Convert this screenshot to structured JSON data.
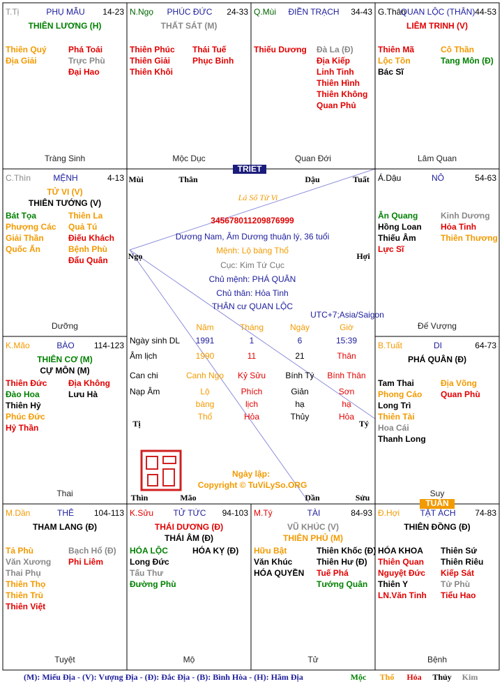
{
  "palaces": [
    {
      "branch": "T.Tị",
      "branch_color": "#888888",
      "name": "PHỤ MẪU",
      "ages": "14-23",
      "main": [
        {
          "text": "THIÊN LƯƠNG (H)",
          "color": "#008000"
        }
      ],
      "left": [
        {
          "text": "Thiên Quý",
          "color": "#f29a00"
        },
        {
          "text": "Địa Giải",
          "color": "#f29a00"
        }
      ],
      "right": [
        {
          "text": "Phá Toái",
          "color": "#e00000"
        },
        {
          "text": "Trực Phù",
          "color": "#888888"
        },
        {
          "text": "Đại Hao",
          "color": "#e00000"
        }
      ],
      "stage": "Tràng Sinh"
    },
    {
      "branch": "N.Ngọ",
      "branch_color": "#006400",
      "name": "PHÚC ĐỨC",
      "ages": "24-33",
      "main": [
        {
          "text": "THẤT SÁT (M)",
          "color": "#888888"
        }
      ],
      "left": [
        {
          "text": "Thiên Phúc",
          "color": "#e00000"
        },
        {
          "text": "Thiên Giải",
          "color": "#e00000"
        },
        {
          "text": "Thiên Khôi",
          "color": "#e00000"
        }
      ],
      "right": [
        {
          "text": "Thái Tuế",
          "color": "#e00000"
        },
        {
          "text": "Phục Binh",
          "color": "#e00000"
        }
      ],
      "stage": "Mộc Dục"
    },
    {
      "branch": "Q.Mùi",
      "branch_color": "#006400",
      "name": "ĐIỀN TRẠCH",
      "ages": "34-43",
      "main": [],
      "left": [
        {
          "text": "Thiếu Dương",
          "color": "#e00000"
        }
      ],
      "right": [
        {
          "text": "Đà La (Đ)",
          "color": "#888888"
        },
        {
          "text": "Địa Kiếp",
          "color": "#e00000"
        },
        {
          "text": "Linh Tinh",
          "color": "#e00000"
        },
        {
          "text": "Thiên Hình",
          "color": "#e00000"
        },
        {
          "text": "Thiên Không",
          "color": "#e00000"
        },
        {
          "text": "Quan Phủ",
          "color": "#e00000"
        }
      ],
      "stage": "Quan Đới"
    },
    {
      "branch": "G.Thân",
      "branch_color": "#000000",
      "name": "QUAN LỘC (THÂN)",
      "ages": "44-53",
      "main": [
        {
          "text": "LIÊM TRINH (V)",
          "color": "#e00000"
        }
      ],
      "left": [
        {
          "text": "Thiên Mã",
          "color": "#e00000"
        },
        {
          "text": "Lộc Tồn",
          "color": "#f29a00"
        },
        {
          "text": "Bác Sĩ",
          "color": "#000000"
        }
      ],
      "right": [
        {
          "text": "Cô Thần",
          "color": "#f29a00"
        },
        {
          "text": "Tang Môn (Đ)",
          "color": "#008000"
        }
      ],
      "stage": "Lâm Quan"
    },
    {
      "branch": "C.Thìn",
      "branch_color": "#888888",
      "name": "MỆNH",
      "ages": "4-13",
      "main": [
        {
          "text": "TỬ VI (V)",
          "color": "#f29a00"
        },
        {
          "text": "THIÊN TƯỚNG (V)",
          "color": "#000000"
        }
      ],
      "left": [
        {
          "text": "Bát Tọa",
          "color": "#008000"
        },
        {
          "text": "Phượng Các",
          "color": "#f29a00"
        },
        {
          "text": "Giải Thần",
          "color": "#f29a00"
        },
        {
          "text": "Quốc Ấn",
          "color": "#f29a00"
        }
      ],
      "right": [
        {
          "text": "Thiên La",
          "color": "#f29a00"
        },
        {
          "text": "Quả Tú",
          "color": "#f29a00"
        },
        {
          "text": "Điếu Khách",
          "color": "#e00000"
        },
        {
          "text": "Bệnh Phù",
          "color": "#f29a00"
        },
        {
          "text": "Đẩu Quân",
          "color": "#e00000"
        }
      ],
      "stage": "Dưỡng"
    },
    {
      "branch": "Á.Dậu",
      "branch_color": "#000000",
      "name": "NÔ",
      "ages": "54-63",
      "main": [],
      "left": [
        {
          "text": "Ân Quang",
          "color": "#008000"
        },
        {
          "text": "Hồng Loan",
          "color": "#000000"
        },
        {
          "text": "Thiếu Âm",
          "color": "#000000"
        },
        {
          "text": "Lực Sĩ",
          "color": "#e00000"
        }
      ],
      "right": [
        {
          "text": "Kinh Dương",
          "color": "#888888"
        },
        {
          "text": "Hỏa Tinh",
          "color": "#e00000"
        },
        {
          "text": "Thiên Thương",
          "color": "#f29a00"
        }
      ],
      "stage": "Đế Vượng"
    },
    {
      "branch": "K.Mão",
      "branch_color": "#f29a00",
      "name": "BÀO",
      "ages": "114-123",
      "main": [
        {
          "text": "THIÊN CƠ (M)",
          "color": "#008000"
        },
        {
          "text": "CỰ MÔN (M)",
          "color": "#000000"
        }
      ],
      "left": [
        {
          "text": "Thiên Đức",
          "color": "#e00000"
        },
        {
          "text": "Đào Hoa",
          "color": "#008000"
        },
        {
          "text": "Thiên Hỷ",
          "color": "#000000"
        },
        {
          "text": "Phúc Đức",
          "color": "#f29a00"
        },
        {
          "text": "Hỷ Thần",
          "color": "#e00000"
        }
      ],
      "right": [
        {
          "text": "Địa Không",
          "color": "#e00000"
        },
        {
          "text": "Lưu Hà",
          "color": "#000000"
        }
      ],
      "stage": "Thai"
    },
    {
      "branch": "B.Tuất",
      "branch_color": "#f29a00",
      "name": "DI",
      "ages": "64-73",
      "main": [
        {
          "text": "PHÁ QUÂN (Đ)",
          "color": "#000000"
        }
      ],
      "left": [
        {
          "text": "Tam Thai",
          "color": "#000000"
        },
        {
          "text": "Phong Cáo",
          "color": "#f29a00"
        },
        {
          "text": "Long Trì",
          "color": "#000000"
        },
        {
          "text": "Thiên Tài",
          "color": "#f29a00"
        },
        {
          "text": "Hoa Cái",
          "color": "#888888"
        },
        {
          "text": "Thanh Long",
          "color": "#000000"
        }
      ],
      "right": [
        {
          "text": "Địa Võng",
          "color": "#f29a00"
        },
        {
          "text": "Quan Phù",
          "color": "#e00000"
        }
      ],
      "stage": "Suy"
    },
    {
      "branch": "M.Dần",
      "branch_color": "#f29a00",
      "name": "THÊ",
      "ages": "104-113",
      "main": [
        {
          "text": "THAM LANG (Đ)",
          "color": "#000000"
        }
      ],
      "left": [
        {
          "text": "Tả Phù",
          "color": "#f29a00"
        },
        {
          "text": "Văn Xương",
          "color": "#888888"
        },
        {
          "text": "Thai Phụ",
          "color": "#888888"
        },
        {
          "text": "Thiên Thọ",
          "color": "#f29a00"
        },
        {
          "text": "Thiên Trù",
          "color": "#f29a00"
        },
        {
          "text": "Thiên Việt",
          "color": "#e00000"
        }
      ],
      "right": [
        {
          "text": "Bạch Hổ (Đ)",
          "color": "#888888"
        },
        {
          "text": "Phi Liêm",
          "color": "#e00000"
        }
      ],
      "stage": "Tuyệt"
    },
    {
      "branch": "K.Sửu",
      "branch_color": "#e00000",
      "name": "TỬ TỨC",
      "ages": "94-103",
      "main": [
        {
          "text": "THÁI DƯƠNG (Đ)",
          "color": "#e00000"
        },
        {
          "text": "THÁI ÂM (Đ)",
          "color": "#000000"
        }
      ],
      "left": [
        {
          "text": "HÓA LỘC",
          "color": "#008000"
        },
        {
          "text": "Long Đức",
          "color": "#000000"
        },
        {
          "text": "Tấu Thư",
          "color": "#888888"
        },
        {
          "text": "Đường Phù",
          "color": "#008000"
        }
      ],
      "right": [
        {
          "text": "HÓA KỴ (Đ)",
          "color": "#000000"
        }
      ],
      "stage": "Mộ"
    },
    {
      "branch": "M.Tý",
      "branch_color": "#e00000",
      "name": "TÀI",
      "ages": "84-93",
      "main": [
        {
          "text": "VŨ KHÚC (V)",
          "color": "#888888"
        },
        {
          "text": "THIÊN PHỦ (M)",
          "color": "#f29a00"
        }
      ],
      "left": [
        {
          "text": "Hữu Bật",
          "color": "#f29a00"
        },
        {
          "text": "Văn Khúc",
          "color": "#000000"
        },
        {
          "text": "HÓA QUYỀN",
          "color": "#000000"
        }
      ],
      "right": [
        {
          "text": "Thiên Khốc (Đ)",
          "color": "#000000"
        },
        {
          "text": "Thiên Hư (Đ)",
          "color": "#000000"
        },
        {
          "text": "Tuế Phá",
          "color": "#e00000"
        },
        {
          "text": "Tướng Quân",
          "color": "#008000"
        }
      ],
      "stage": "Tử"
    },
    {
      "branch": "Đ.Hợi",
      "branch_color": "#f29a00",
      "name": "TẬT ÁCH",
      "ages": "74-83",
      "main": [
        {
          "text": "THIÊN ĐỒNG (Đ)",
          "color": "#000000"
        }
      ],
      "left": [
        {
          "text": "HÓA KHOA",
          "color": "#000000"
        },
        {
          "text": "Thiên Quan",
          "color": "#e00000"
        },
        {
          "text": "Nguyệt Đức",
          "color": "#e00000"
        },
        {
          "text": "Thiên Y",
          "color": "#000000"
        },
        {
          "text": "LN.Văn Tinh",
          "color": "#e00000"
        }
      ],
      "right": [
        {
          "text": "Thiên Sứ",
          "color": "#000000"
        },
        {
          "text": "Thiên Riêu",
          "color": "#000000"
        },
        {
          "text": "Kiếp Sát",
          "color": "#e00000"
        },
        {
          "text": "Tử Phù",
          "color": "#888888"
        },
        {
          "text": "Tiểu Hao",
          "color": "#e00000"
        }
      ],
      "stage": "Bệnh"
    }
  ],
  "markers": {
    "triet": "TRIET",
    "tuan": "TUẦN"
  },
  "center": {
    "title": "Lá Số Tử Vi",
    "id": "345678011209876999",
    "summary": "Dương Nam, Âm Dương thuận lý, 36 tuổi",
    "menh": "Mệnh: Lộ bàng Thổ",
    "cuc": "Cục: Kim Tứ Cục",
    "chu_menh": "Chủ mệnh:  PHÁ QUÂN",
    "chu_than": "Chủ thân:  Hỏa Tinh",
    "than_cu": "THÂN cư QUAN LỘC",
    "timezone": "UTC+7;Asia/Saigon",
    "corners": [
      "Mùi",
      "Thân",
      "Dậu",
      "Tuất",
      "Ngọ",
      "Hợi",
      "Tị",
      "Tý",
      "Thìn",
      "Mão",
      "Dần",
      "Sửu"
    ],
    "table": {
      "header": [
        "Năm",
        "Tháng",
        "Ngày",
        "Giờ"
      ],
      "rows": [
        {
          "label": "Ngày sinh DL",
          "cells": [
            [
              "1991"
            ],
            [
              "1"
            ],
            [
              "6"
            ],
            [
              "15:39"
            ]
          ],
          "colors": [
            "#1c1c9c",
            "#1c1c9c",
            "#1c1c9c",
            "#1c1c9c"
          ]
        },
        {
          "label": "Âm lịch",
          "cells": [
            [
              "1990"
            ],
            [
              "11"
            ],
            [
              "21"
            ],
            [
              "Thân"
            ]
          ],
          "colors": [
            "#f29a00",
            "#e00000",
            "#000000",
            "#e00000"
          ]
        },
        {
          "label": "Can chi",
          "cells": [
            [
              "Canh Ngọ"
            ],
            [
              "Kỷ Sửu"
            ],
            [
              "Bính Tý"
            ],
            [
              "Bính Thân"
            ]
          ],
          "colors": [
            "#f29a00",
            "#e00000",
            "#000000",
            "#e00000"
          ]
        },
        {
          "label": "Nạp Âm",
          "cells": [
            [
              "Lộ",
              "bàng",
              "Thổ"
            ],
            [
              "Phích",
              "lịch",
              "Hỏa"
            ],
            [
              "Giản",
              "hạ",
              "Thủy"
            ],
            [
              "Sơn",
              "hạ",
              "Hỏa"
            ]
          ],
          "colors": [
            "#f29a00",
            "#e00000",
            "#000000",
            "#e00000"
          ]
        }
      ]
    },
    "date_created": "Ngày lập:",
    "copyright": "Copyright © TuViLySo.ORG"
  },
  "footer": {
    "legend": "(M): Miếu Địa - (V): Vượng Địa - (Đ): Đắc Địa - (B): Bình Hòa - (H): Hãm Địa",
    "elements": [
      {
        "name": "Mộc",
        "color": "#008000"
      },
      {
        "name": "Thổ",
        "color": "#f29a00"
      },
      {
        "name": "Hỏa",
        "color": "#e00000"
      },
      {
        "name": "Thủy",
        "color": "#000000"
      },
      {
        "name": "Kim",
        "color": "#888888"
      }
    ]
  }
}
